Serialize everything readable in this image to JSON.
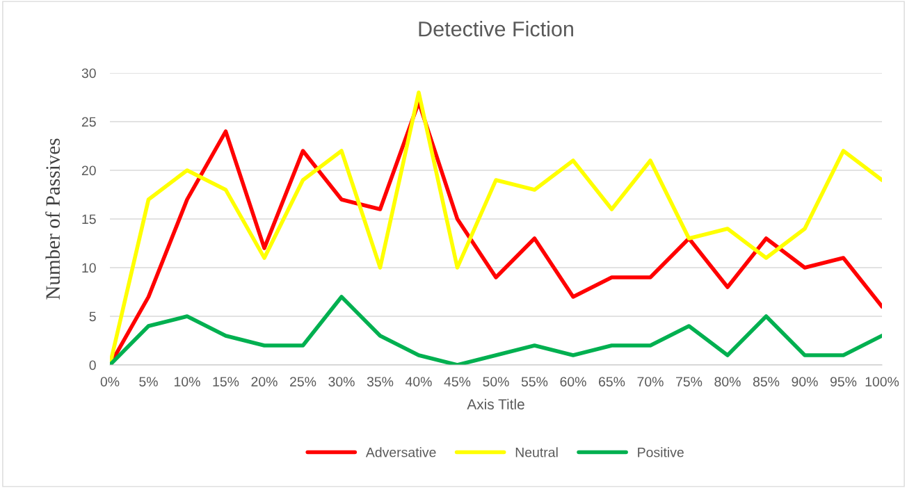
{
  "chart_data": {
    "type": "line",
    "title": "Detective Fiction",
    "xlabel": "Axis Title",
    "ylabel": "Number of Passives",
    "categories": [
      "0%",
      "5%",
      "10%",
      "15%",
      "20%",
      "25%",
      "30%",
      "35%",
      "40%",
      "45%",
      "50%",
      "55%",
      "60%",
      "65%",
      "70%",
      "75%",
      "80%",
      "85%",
      "90%",
      "95%",
      "100%"
    ],
    "series": [
      {
        "name": "Adversative",
        "color": "#ff0000",
        "values": [
          0,
          7,
          17,
          24,
          12,
          22,
          17,
          16,
          27,
          15,
          9,
          13,
          7,
          9,
          9,
          13,
          8,
          13,
          10,
          11,
          6
        ]
      },
      {
        "name": "Neutral",
        "color": "#ffff00",
        "values": [
          0,
          17,
          20,
          18,
          11,
          19,
          22,
          10,
          28,
          10,
          19,
          18,
          21,
          16,
          21,
          13,
          14,
          11,
          14,
          22,
          19
        ]
      },
      {
        "name": "Positive",
        "color": "#00b050",
        "values": [
          0,
          4,
          5,
          3,
          2,
          2,
          7,
          3,
          1,
          0,
          1,
          2,
          1,
          2,
          2,
          4,
          1,
          5,
          1,
          1,
          3
        ]
      }
    ],
    "ylim": [
      0,
      30
    ],
    "yticks": [
      0,
      5,
      10,
      15,
      20,
      25,
      30
    ],
    "grid": "y",
    "legend": "bottom",
    "marker": "none",
    "line_style": "solid"
  }
}
